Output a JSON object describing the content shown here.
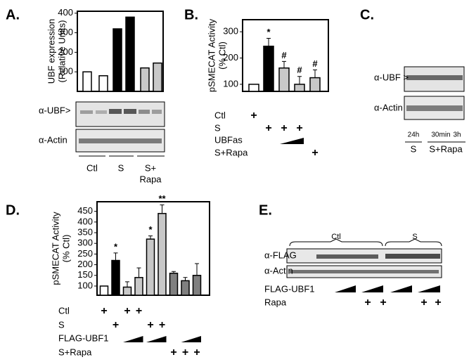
{
  "chart_data": [
    {
      "type": "bar",
      "ylabel": [
        "UBF expression",
        "(Relative Units)"
      ],
      "categories": [
        null,
        null,
        null,
        null,
        null,
        null
      ],
      "values": [
        100,
        80,
        320,
        380,
        120,
        145
      ],
      "colors": [
        "#ffffff",
        "#ffffff",
        "#000000",
        "#000000",
        "#c8c8c8",
        "#c8c8c8"
      ],
      "ylim": [
        0,
        410
      ],
      "yticks": [
        100,
        200,
        300,
        400
      ]
    },
    {
      "type": "bar",
      "ylabel": [
        "pSMECAT Activity",
        "(% Ctl)"
      ],
      "categories": [
        null,
        null,
        null,
        null,
        null
      ],
      "values": [
        100,
        245,
        162,
        100,
        125
      ],
      "errors": [
        0,
        30,
        25,
        30,
        30
      ],
      "annotations": [
        null,
        "*",
        "#",
        "#",
        "#"
      ],
      "colors": [
        "#ffffff",
        "#000000",
        "#c8c8c8",
        "#c8c8c8",
        "#c8c8c8"
      ],
      "ylim": [
        73,
        346
      ],
      "yticks": [
        100,
        200,
        300
      ],
      "treatments": [
        {
          "label": "Ctl",
          "marks": [
            "+",
            null,
            null,
            null,
            null
          ]
        },
        {
          "label": "S",
          "marks": [
            null,
            "+",
            "+",
            "+",
            null
          ]
        },
        {
          "label": "UBFas"
        },
        {
          "label": "S+Rapa",
          "marks": [
            null,
            null,
            null,
            null,
            "+"
          ]
        }
      ]
    },
    {
      "type": "bar",
      "ylabel": [
        "pSMECAT Activity",
        "(% Ctl)"
      ],
      "categories": [
        null,
        null,
        null,
        null,
        null,
        null,
        null,
        null,
        null
      ],
      "values": [
        100,
        220,
        95,
        140,
        320,
        440,
        160,
        125,
        150
      ],
      "errors": [
        0,
        35,
        25,
        45,
        15,
        40,
        8,
        15,
        55
      ],
      "annotations": [
        null,
        "*",
        null,
        null,
        "*",
        "**",
        null,
        null,
        null
      ],
      "colors": [
        "#ffffff",
        "#000000",
        "#c8c8c8",
        "#c8c8c8",
        "#c8c8c8",
        "#c8c8c8",
        "#808080",
        "#808080",
        "#808080"
      ],
      "ylim": [
        57,
        495
      ],
      "yticks": [
        100,
        150,
        200,
        250,
        300,
        350,
        400,
        450
      ],
      "treatments": [
        {
          "label": "Ctl",
          "marks": [
            "+",
            null,
            "+",
            "+",
            null,
            null,
            null,
            null,
            null
          ]
        },
        {
          "label": "S",
          "marks": [
            null,
            "+",
            null,
            null,
            "+",
            "+",
            null,
            null,
            null
          ]
        },
        {
          "label": "FLAG-UBF1"
        },
        {
          "label": "S+Rapa",
          "marks": [
            null,
            null,
            null,
            null,
            null,
            null,
            "+",
            "+",
            "+"
          ]
        }
      ]
    }
  ],
  "panels": [
    "A.",
    "B.",
    "C.",
    "D.",
    "E."
  ],
  "blot_a": {
    "rows": [
      "α-UBF>",
      "α-Actin"
    ],
    "groups": [
      "Ctl",
      "S"
    ],
    "group3": [
      "S+",
      "Rapa"
    ]
  },
  "blot_c": {
    "rows": [
      "α-UBF >",
      "α-Actin"
    ],
    "times": [
      "24h",
      "30min",
      "3h"
    ],
    "groups": [
      "S",
      "S+Rapa"
    ]
  },
  "blot_e": {
    "rows": [
      "α-FLAG",
      "α-Actin"
    ],
    "groups": [
      "Ctl",
      "S"
    ],
    "treatments": [
      "FLAG-UBF1",
      "Rapa"
    ],
    "rapa_marks": [
      "+",
      "+",
      "+",
      "+"
    ]
  }
}
